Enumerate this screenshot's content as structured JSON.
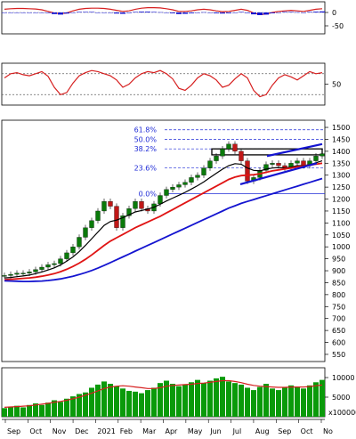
{
  "chart_data": {
    "type": "line",
    "x_tick_labels": [
      "Sep",
      "Oct",
      "Nov",
      "Dec",
      "2021",
      "Feb",
      "Mar",
      "Apr",
      "May",
      "Jun",
      "Jul",
      "Aug",
      "Sep",
      "Oct",
      "No"
    ],
    "panels": [
      {
        "name": "oscillator",
        "y_ticks": [
          0,
          -50
        ],
        "ylim": [
          -80,
          40
        ],
        "series": [
          {
            "role": "line",
            "color": "#d62020",
            "values": [
              12,
              14,
              15,
              15,
              14,
              13,
              10,
              4,
              -2,
              -4,
              -2,
              6,
              12,
              15,
              16,
              16,
              15,
              12,
              8,
              4,
              6,
              12,
              16,
              18,
              18,
              17,
              14,
              10,
              4,
              4,
              6,
              10,
              12,
              10,
              6,
              3,
              4,
              8,
              12,
              8,
              -2,
              -8,
              -6,
              0,
              4,
              6,
              8,
              6,
              4,
              8,
              12,
              14
            ]
          },
          {
            "role": "histogram",
            "color": "#1414d0",
            "values": [
              0,
              0,
              0,
              0,
              0,
              0,
              0,
              -2,
              -6,
              -8,
              -4,
              0,
              2,
              2,
              2,
              0,
              0,
              0,
              -4,
              -5,
              -2,
              2,
              3,
              3,
              2,
              1,
              0,
              -3,
              -6,
              -5,
              -3,
              0,
              1,
              0,
              -3,
              -4,
              -3,
              0,
              2,
              -2,
              -7,
              -10,
              -8,
              -3,
              0,
              2,
              2,
              1,
              0,
              2,
              3,
              4
            ]
          }
        ]
      },
      {
        "name": "rsi",
        "y_ticks": [
          50
        ],
        "ylim": [
          10,
          90
        ],
        "levels": [
          70,
          30
        ],
        "series": [
          {
            "role": "line",
            "color": "#d62020",
            "values": [
              62,
              70,
              72,
              68,
              66,
              70,
              74,
              65,
              44,
              30,
              34,
              52,
              66,
              72,
              76,
              74,
              70,
              66,
              58,
              44,
              50,
              62,
              70,
              74,
              72,
              76,
              70,
              60,
              42,
              38,
              48,
              62,
              70,
              66,
              58,
              44,
              48,
              60,
              70,
              62,
              38,
              26,
              30,
              48,
              62,
              68,
              64,
              58,
              66,
              74,
              70,
              72
            ]
          }
        ]
      },
      {
        "name": "price",
        "y_ticks": [
          1500,
          1450,
          1400,
          1350,
          1300,
          1250,
          1200,
          1150,
          1100,
          1050,
          1000,
          950,
          900,
          850,
          800,
          750,
          700,
          650,
          600,
          550
        ],
        "ylim": [
          520,
          1530
        ],
        "fib_levels": [
          {
            "label": "61.8%",
            "value": 1490
          },
          {
            "label": "50.0%",
            "value": 1450
          },
          {
            "label": "38.2%",
            "value": 1410
          },
          {
            "label": "23.6%",
            "value": 1330
          },
          {
            "label": "0.0%",
            "value": 1222
          }
        ],
        "series": [
          {
            "role": "price",
            "color": "#0a7a0a",
            "values": [
              880,
              885,
              890,
              890,
              895,
              905,
              915,
              925,
              930,
              950,
              975,
              1000,
              1040,
              1080,
              1110,
              1150,
              1190,
              1170,
              1080,
              1130,
              1160,
              1190,
              1160,
              1150,
              1180,
              1215,
              1240,
              1250,
              1260,
              1270,
              1290,
              1300,
              1330,
              1360,
              1380,
              1410,
              1430,
              1400,
              1360,
              1275,
              1290,
              1320,
              1345,
              1350,
              1340,
              1330,
              1350,
              1360,
              1340,
              1360,
              1380,
              1390
            ]
          },
          {
            "role": "ma_short",
            "color": "#000000",
            "values": [
              870,
              872,
              875,
              878,
              882,
              888,
              895,
              903,
              912,
              924,
              940,
              958,
              980,
              1006,
              1034,
              1062,
              1090,
              1106,
              1112,
              1122,
              1134,
              1146,
              1152,
              1158,
              1166,
              1178,
              1192,
              1204,
              1216,
              1228,
              1242,
              1256,
              1272,
              1290,
              1308,
              1325,
              1340,
              1348,
              1346,
              1330,
              1320,
              1318,
              1325,
              1330,
              1332,
              1330,
              1334,
              1340,
              1340,
              1344,
              1352,
              1360
            ]
          },
          {
            "role": "ma_mid",
            "color": "#e01414",
            "values": [
              862,
              864,
              866,
              868,
              870,
              873,
              877,
              882,
              888,
              896,
              906,
              918,
              932,
              948,
              966,
              986,
              1006,
              1024,
              1038,
              1052,
              1066,
              1080,
              1092,
              1104,
              1116,
              1128,
              1142,
              1156,
              1170,
              1184,
              1198,
              1212,
              1226,
              1240,
              1254,
              1268,
              1282,
              1292,
              1298,
              1300,
              1302,
              1306,
              1312,
              1318,
              1322,
              1326,
              1330,
              1335,
              1338,
              1342,
              1346,
              1350
            ]
          },
          {
            "role": "ma_long",
            "color": "#1414d0",
            "values": [
              858,
              857,
              856,
              855,
              855,
              856,
              857,
              859,
              862,
              866,
              871,
              877,
              884,
              892,
              901,
              911,
              922,
              934,
              946,
              958,
              970,
              982,
              994,
              1006,
              1018,
              1030,
              1042,
              1054,
              1066,
              1078,
              1090,
              1102,
              1114,
              1126,
              1138,
              1150,
              1162,
              1172,
              1182,
              1190,
              1198,
              1206,
              1214,
              1222,
              1230,
              1238,
              1246,
              1254,
              1262,
              1270,
              1278,
              1286
            ]
          }
        ],
        "resistance_box": [
          1385,
          1410
        ]
      },
      {
        "name": "volume",
        "y_ticks": [
          10000,
          5000
        ],
        "y_tick_labels": [
          "10000",
          "5000"
        ],
        "scale_label": "x100000",
        "ylim": [
          0,
          12500
        ],
        "series": [
          {
            "role": "volume",
            "color": "#0a9a0a",
            "values": [
              2200,
              2600,
              2800,
              2400,
              3000,
              3400,
              3000,
              3600,
              4200,
              3800,
              4600,
              5200,
              5800,
              6200,
              7400,
              8200,
              9000,
              8400,
              7800,
              7200,
              6600,
              6400,
              6000,
              6800,
              7400,
              8600,
              9200,
              8400,
              7800,
              8200,
              8800,
              9400,
              8600,
              9200,
              9800,
              10200,
              9000,
              8600,
              8200,
              7400,
              6800,
              7600,
              8400,
              7200,
              6800,
              7400,
              8000,
              7600,
              7200,
              8000,
              8800,
              9400
            ]
          },
          {
            "role": "volume_ma",
            "color": "#d62020",
            "values": [
              2400,
              2500,
              2600,
              2700,
              2800,
              3000,
              3200,
              3400,
              3700,
              3900,
              4200,
              4600,
              5000,
              5500,
              6000,
              6600,
              7200,
              7600,
              7800,
              7900,
              7800,
              7600,
              7400,
              7200,
              7200,
              7400,
              7800,
              8000,
              8100,
              8200,
              8300,
              8500,
              8600,
              8800,
              9000,
              9200,
              9200,
              9000,
              8700,
              8300,
              8000,
              7800,
              7700,
              7600,
              7500,
              7500,
              7600,
              7600,
              7600,
              7700,
              7900,
              8100
            ]
          }
        ]
      }
    ]
  }
}
